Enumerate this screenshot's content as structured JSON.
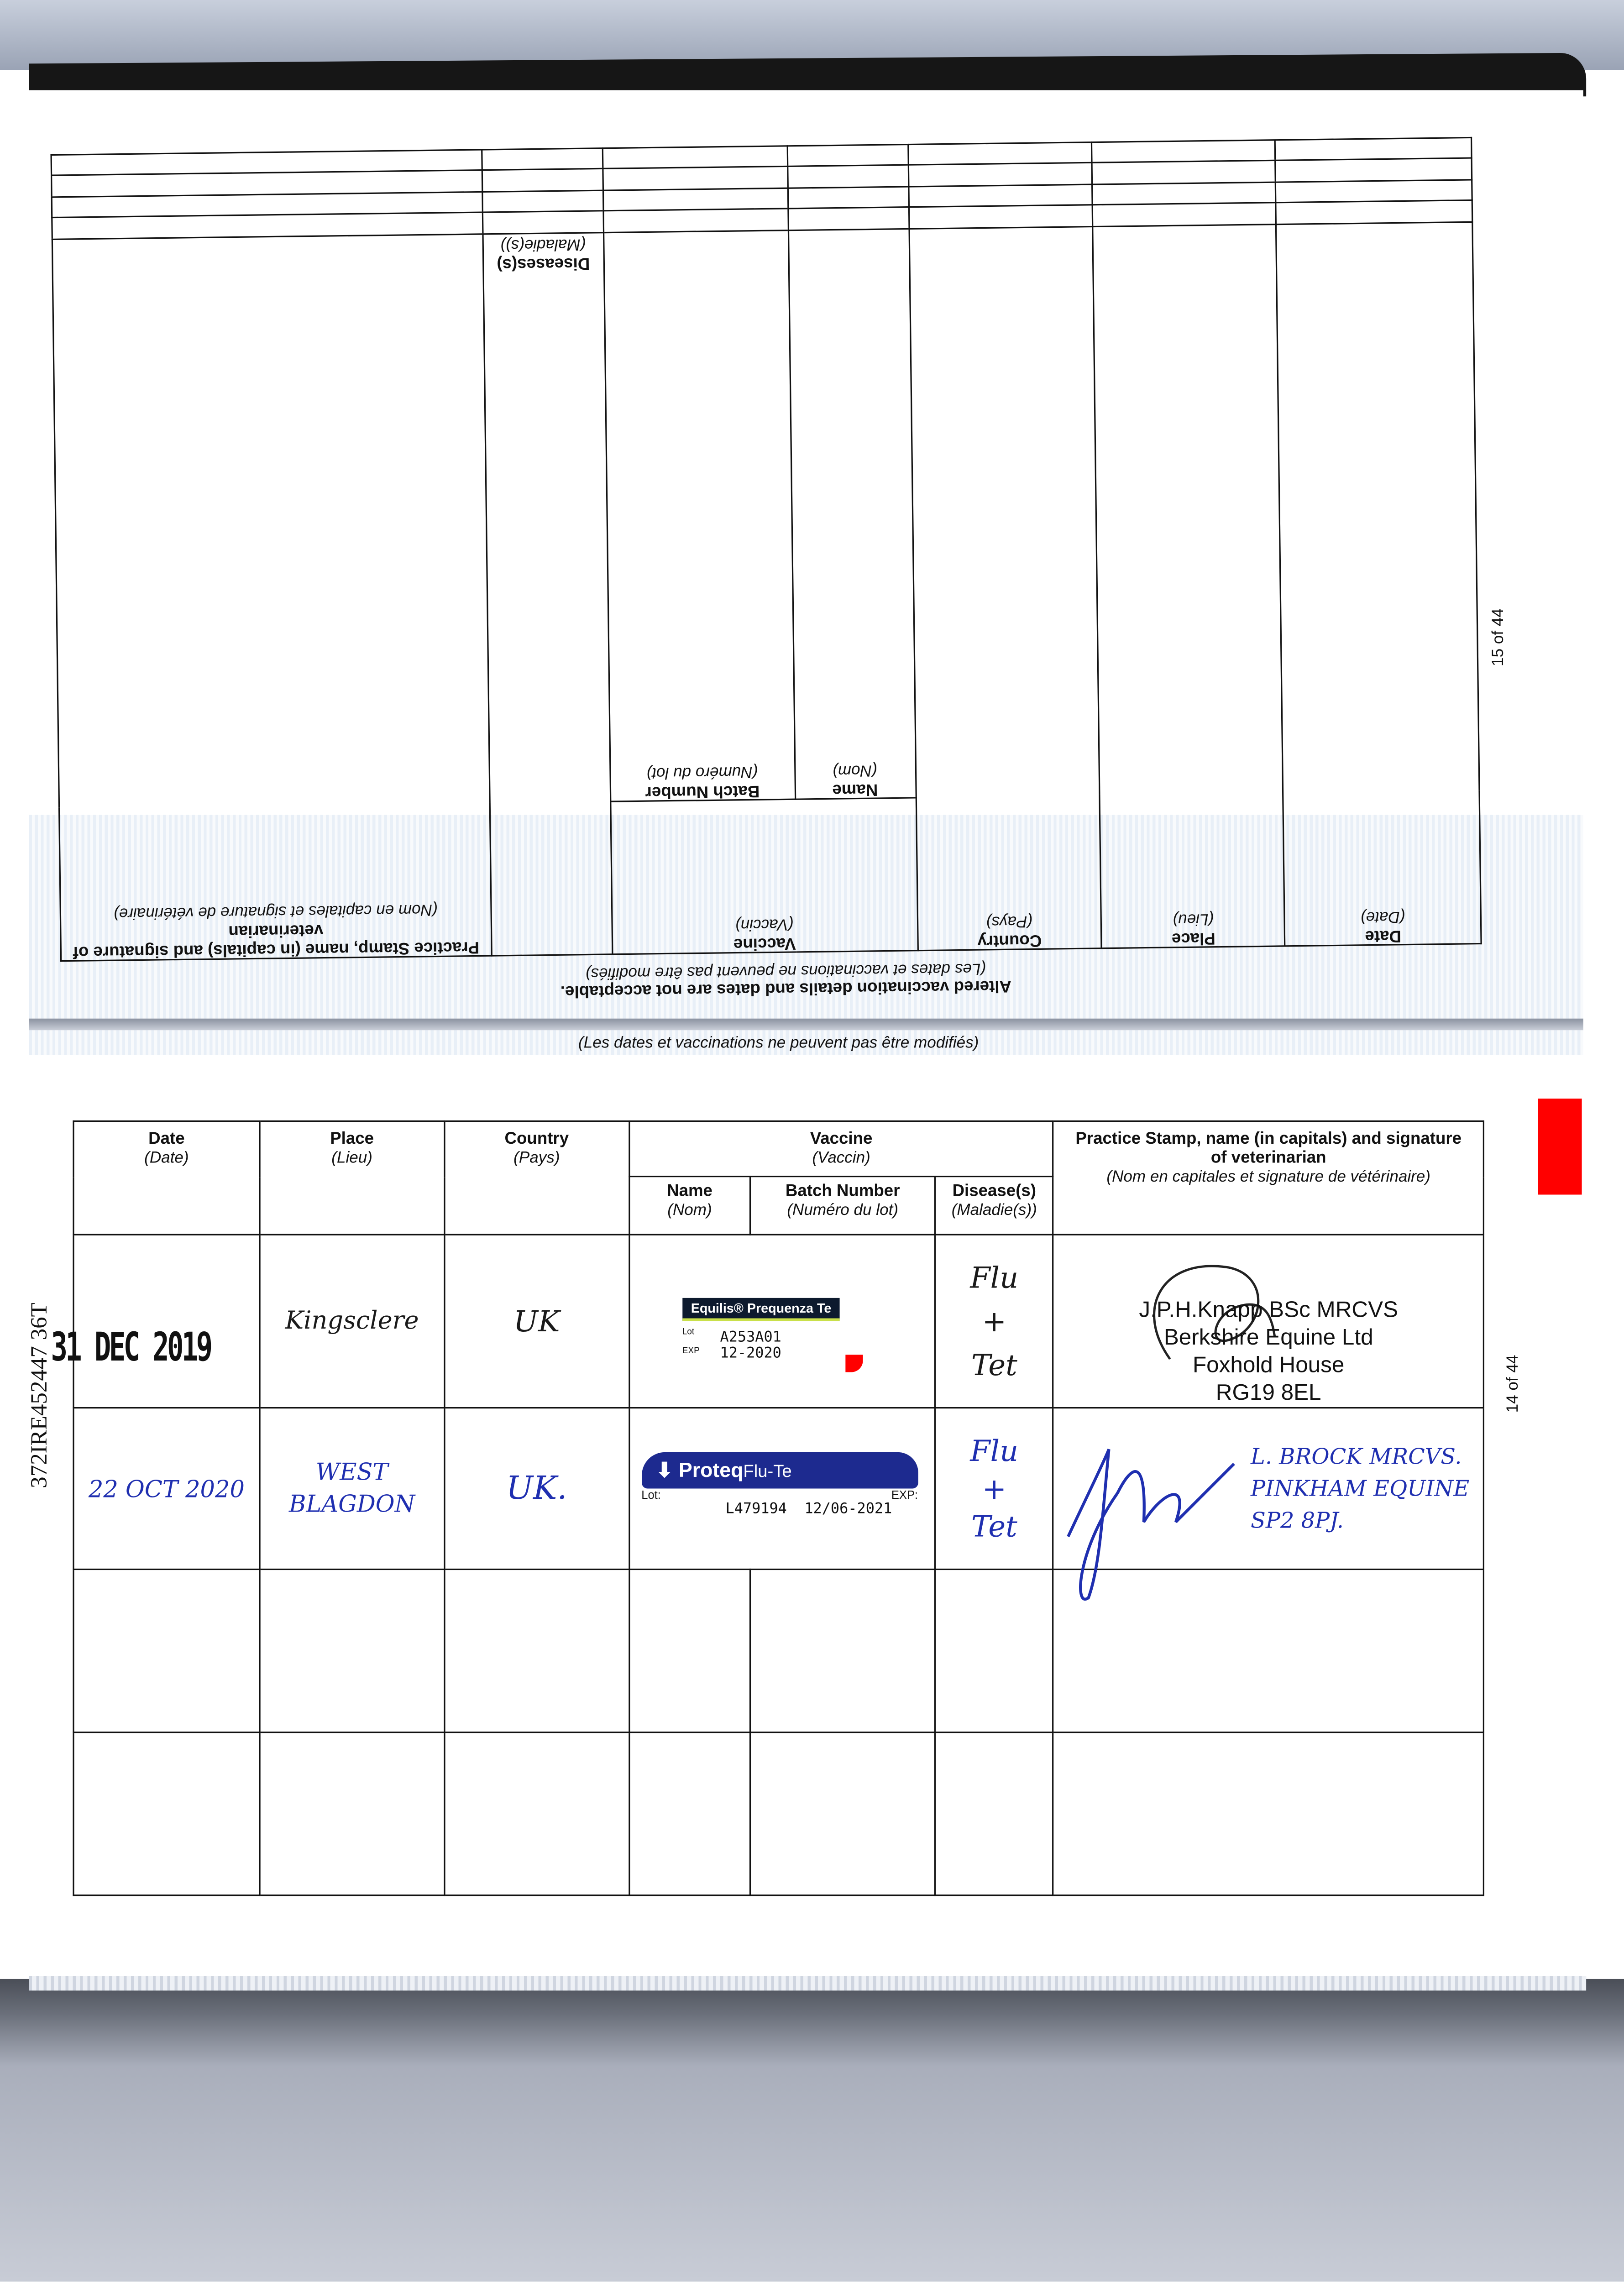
{
  "side_id": "372IRE452447 36T",
  "upper_page": {
    "page_number": "15 of 44",
    "headers": {
      "date": "Date",
      "date_fr": "(Date)",
      "place": "Place",
      "place_fr": "(Lieu)",
      "country": "Country",
      "country_fr": "(Pays)",
      "vaccine": "Vaccine",
      "vaccine_fr": "(Vaccin)",
      "name": "Name",
      "name_fr": "(Nom)",
      "batch": "Batch Number",
      "batch_fr": "(Numéro du lot)",
      "diseases": "Diseases(s)",
      "diseases_fr": "(Maladie(s))",
      "practice": "Practice Stamp, name (in capitals) and signature of veterinarian",
      "practice_fr": "(Nom en capitales et signature de vétérinaire)"
    },
    "notice": "Altered vaccination details and dates are not acceptable.",
    "notice_fr": "(Les dates et vaccinations ne peuvent pas être modifiés)"
  },
  "lower_page": {
    "page_number": "14 of 44",
    "notice_fr": "(Les dates et vaccinations ne peuvent pas être modifiés)",
    "headers": {
      "date": "Date",
      "date_fr": "(Date)",
      "place": "Place",
      "place_fr": "(Lieu)",
      "country": "Country",
      "country_fr": "(Pays)",
      "vaccine": "Vaccine",
      "vaccine_fr": "(Vaccin)",
      "name": "Name",
      "name_fr": "(Nom)",
      "batch": "Batch Number",
      "batch_fr": "(Numéro du lot)",
      "diseases": "Disease(s)",
      "diseases_fr": "(Maladie(s))",
      "practice": "Practice Stamp, name (in capitals) and signature of veterinarian",
      "practice_fr": "(Nom en capitales et signature de vétérinaire)"
    },
    "rows": [
      {
        "date": "31 DEC 2019",
        "place": "Kingsclere",
        "country": "UK",
        "vaccine_label": {
          "brand": "Equilis® Prequenza Te",
          "lot_label": "Lot",
          "exp_label": "EXP",
          "lot": "A253A01",
          "exp": "12-2020"
        },
        "diseases": [
          "Flu",
          "+",
          "Tet"
        ],
        "stamp": [
          "J.P.H.Knapp BSc MRCVS",
          "Berkshire Equine Ltd",
          "Foxhold House",
          "RG19 8EL"
        ]
      },
      {
        "date": "22 OCT 2020",
        "place": "WEST BLAGDON",
        "country": "UK.",
        "vaccine_label": {
          "brand": "Proteq",
          "brand_suffix": "Flu-Te",
          "lot_label": "Lot:",
          "exp_label": "EXP:",
          "lot": "L479194",
          "exp": "12/06-2021"
        },
        "diseases": [
          "Flu",
          "+",
          "Tet"
        ],
        "stamp": [
          "L. BROCK MRCVS.",
          "PINKHAM EQUINE",
          "SP2 8PJ."
        ]
      }
    ]
  },
  "colors": {
    "ink_blue": "#1f2fb0",
    "tab_red": "#ff0000",
    "proteq_blue": "#1d2a8f"
  }
}
